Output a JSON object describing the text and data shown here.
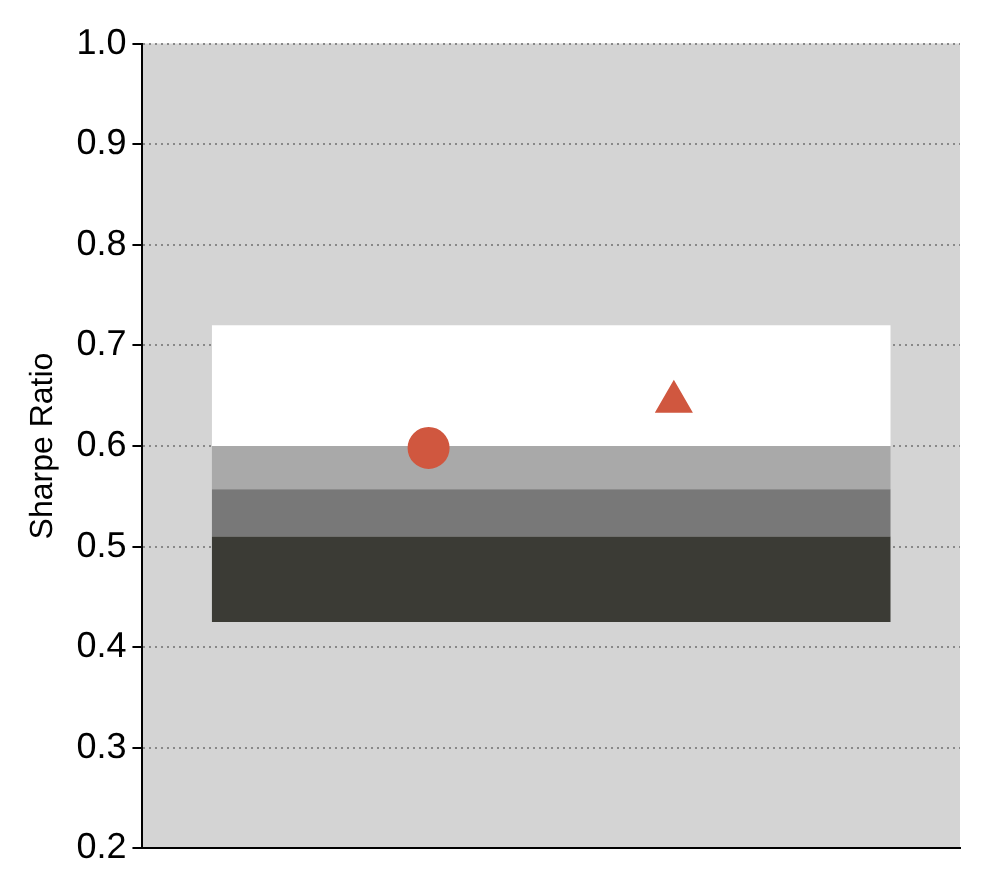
{
  "chart_data": {
    "type": "bar",
    "ylabel": "Sharpe Ratio",
    "categories": [
      null
    ],
    "series": [
      {
        "color": "#3b3b35",
        "base": [
          0.425
        ],
        "values": [
          0.085
        ]
      },
      {
        "color": "#787878",
        "base": [
          0.51
        ],
        "values": [
          0.047
        ]
      },
      {
        "color": "#a9a9a9",
        "base": [
          0.557
        ],
        "values": [
          0.043
        ]
      },
      {
        "color": "#ffffff",
        "base": [
          0.6
        ],
        "values": [
          0.12
        ]
      },
      {
        "type": "scatter",
        "marker": "circle",
        "color": "#d0573f",
        "values": [
          0.598
        ]
      },
      {
        "type": "scatter",
        "marker": "triangle",
        "color": "#d0573f",
        "values": [
          0.644
        ]
      }
    ],
    "ylim": [
      0.2,
      1.0
    ],
    "yticks": [
      0.2,
      0.3,
      0.4,
      0.5,
      0.6,
      0.7,
      0.8,
      0.9,
      {
        "value": 1,
        "label": "1.0"
      }
    ],
    "grid": "y"
  }
}
